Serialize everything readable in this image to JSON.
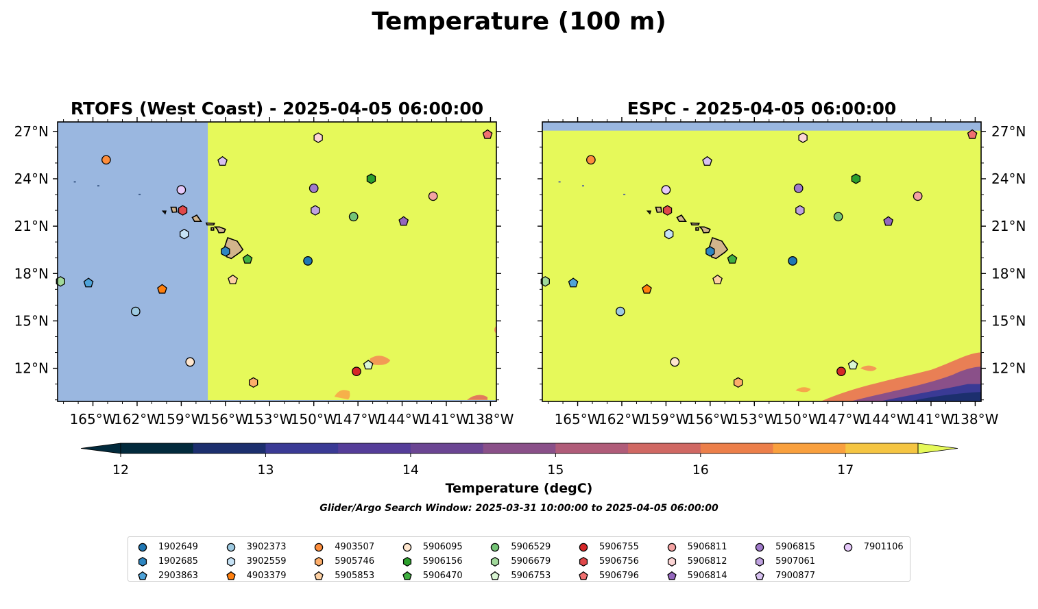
{
  "figure": {
    "title": "Temperature (100 m)",
    "search_window": "Glider/Argo Search Window: 2025-03-31 10:00:00 to 2025-04-05 06:00:00"
  },
  "panels": [
    {
      "title": "RTOFS (West Coast) - 2025-04-05 06:00:00",
      "lat_label_side": "left",
      "model_domain_boundary_lon": -157.2
    },
    {
      "title": "ESPC - 2025-04-05 06:00:00",
      "lat_label_side": "right"
    }
  ],
  "axes": {
    "lon_range": [
      -167.4,
      -137.6
    ],
    "lat_range": [
      9.9,
      27.6
    ],
    "lon_ticks": [
      "165°W",
      "162°W",
      "159°W",
      "156°W",
      "153°W",
      "150°W",
      "147°W",
      "144°W",
      "141°W",
      "138°W"
    ],
    "lon_tick_values": [
      -165,
      -162,
      -159,
      -156,
      -153,
      -150,
      -147,
      -144,
      -141,
      -138
    ],
    "lat_ticks": [
      "27°N",
      "24°N",
      "21°N",
      "18°N",
      "15°N",
      "12°N"
    ],
    "lat_tick_values": [
      27,
      24,
      21,
      18,
      15,
      12
    ]
  },
  "colorbar": {
    "label": "Temperature (degC)",
    "ticks": [
      "12",
      "13",
      "14",
      "15",
      "16",
      "17"
    ],
    "tick_values": [
      12,
      13,
      14,
      15,
      16,
      17
    ],
    "range": [
      12,
      17.5
    ],
    "colors": [
      "#022a3c",
      "#1c2f6e",
      "#3a3a95",
      "#553d99",
      "#6b4593",
      "#8a5089",
      "#b05c79",
      "#d06863",
      "#ec7f4a",
      "#f9a03e",
      "#f5c542",
      "#e6f95a"
    ],
    "background_nodata": "#9ab7e0"
  },
  "legend": {
    "items": [
      {
        "label": "1902649",
        "shape": "circle",
        "color": "#1f77b4"
      },
      {
        "label": "1902685",
        "shape": "hexagon",
        "color": "#2e86c1"
      },
      {
        "label": "2903863",
        "shape": "pentagon",
        "color": "#4fa3d9"
      },
      {
        "label": "3902373",
        "shape": "circle",
        "color": "#9ecae1"
      },
      {
        "label": "3902559",
        "shape": "hexagon",
        "color": "#c6e2f5"
      },
      {
        "label": "4903379",
        "shape": "pentagon",
        "color": "#ff7f0e"
      },
      {
        "label": "4903507",
        "shape": "circle",
        "color": "#fd8d3c"
      },
      {
        "label": "5905746",
        "shape": "hexagon",
        "color": "#fdae6b"
      },
      {
        "label": "5905853",
        "shape": "pentagon",
        "color": "#fdd0a2"
      },
      {
        "label": "5906095",
        "shape": "circle",
        "color": "#fee6ce"
      },
      {
        "label": "5906156",
        "shape": "hexagon",
        "color": "#2ca02c"
      },
      {
        "label": "5906470",
        "shape": "pentagon",
        "color": "#41b041"
      },
      {
        "label": "5906529",
        "shape": "circle",
        "color": "#74c476"
      },
      {
        "label": "5906679",
        "shape": "hexagon",
        "color": "#a1d99b"
      },
      {
        "label": "5906753",
        "shape": "pentagon",
        "color": "#d9f5d3"
      },
      {
        "label": "5906755",
        "shape": "circle",
        "color": "#d62728"
      },
      {
        "label": "5906756",
        "shape": "hexagon",
        "color": "#e0484a"
      },
      {
        "label": "5906796",
        "shape": "pentagon",
        "color": "#f07070"
      },
      {
        "label": "5906811",
        "shape": "circle",
        "color": "#f4a3a3"
      },
      {
        "label": "5906812",
        "shape": "hexagon",
        "color": "#fcd5d5"
      },
      {
        "label": "5906814",
        "shape": "pentagon",
        "color": "#9467bd"
      },
      {
        "label": "5906815",
        "shape": "circle",
        "color": "#a07acb"
      },
      {
        "label": "5907061",
        "shape": "hexagon",
        "color": "#bfa2e0"
      },
      {
        "label": "7900877",
        "shape": "pentagon",
        "color": "#d7c1f0"
      },
      {
        "label": "7901106",
        "shape": "circle",
        "color": "#e6c9fa"
      }
    ]
  },
  "floats": [
    {
      "id": "1902649",
      "lon": -150.4,
      "lat": 18.8
    },
    {
      "id": "1902685",
      "lon": -156.0,
      "lat": 19.4
    },
    {
      "id": "2903863",
      "lon": -165.3,
      "lat": 17.4
    },
    {
      "id": "3902373",
      "lon": -162.1,
      "lat": 15.6
    },
    {
      "id": "3902559",
      "lon": -158.8,
      "lat": 20.5
    },
    {
      "id": "4903379",
      "lon": -160.3,
      "lat": 17.0
    },
    {
      "id": "4903507",
      "lon": -164.1,
      "lat": 25.2
    },
    {
      "id": "5905746",
      "lon": -154.1,
      "lat": 11.1
    },
    {
      "id": "5905853",
      "lon": -155.5,
      "lat": 17.6
    },
    {
      "id": "5906095",
      "lon": -158.4,
      "lat": 12.4
    },
    {
      "id": "5906156",
      "lon": -146.1,
      "lat": 24.0
    },
    {
      "id": "5906470",
      "lon": -154.5,
      "lat": 18.9
    },
    {
      "id": "5906529",
      "lon": -147.3,
      "lat": 21.6
    },
    {
      "id": "5906679",
      "lon": -167.2,
      "lat": 17.5
    },
    {
      "id": "5906753",
      "lon": -146.3,
      "lat": 12.2
    },
    {
      "id": "5906755",
      "lon": -147.1,
      "lat": 11.8
    },
    {
      "id": "5906756",
      "lon": -158.9,
      "lat": 22.0
    },
    {
      "id": "5906796",
      "lon": -138.2,
      "lat": 26.8
    },
    {
      "id": "5906811",
      "lon": -141.9,
      "lat": 22.9
    },
    {
      "id": "5906812",
      "lon": -149.7,
      "lat": 26.6
    },
    {
      "id": "5906814",
      "lon": -143.9,
      "lat": 21.3
    },
    {
      "id": "5906815",
      "lon": -150.0,
      "lat": 23.4
    },
    {
      "id": "5907061",
      "lon": -149.9,
      "lat": 22.0
    },
    {
      "id": "7900877",
      "lon": -156.2,
      "lat": 25.1
    },
    {
      "id": "7901106",
      "lon": -159.0,
      "lat": 23.3
    }
  ]
}
